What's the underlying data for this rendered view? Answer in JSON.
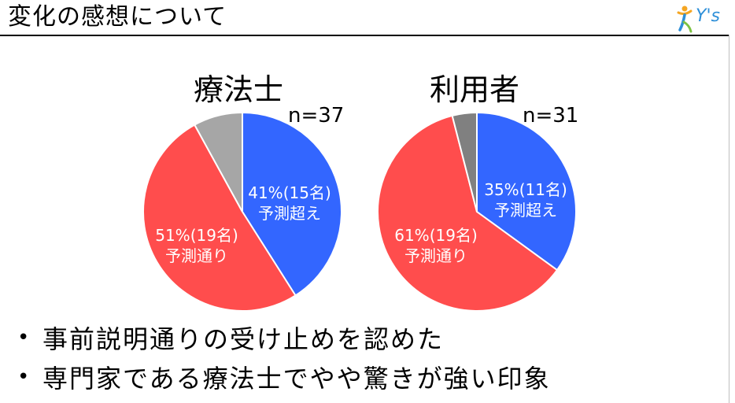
{
  "header": {
    "title": "変化の感想について",
    "logo_text": "Y's"
  },
  "chart_data": [
    {
      "type": "pie",
      "title": "療法士",
      "n_label": "n=37",
      "slices": [
        {
          "value": 41,
          "label": "41%(15名)",
          "sublabel": "予測超え",
          "color": "#3366ff"
        },
        {
          "value": 51,
          "label": "51%(19名)",
          "sublabel": "予測通り",
          "color": "#ff4d4d"
        },
        {
          "value": 8,
          "label": "",
          "sublabel": "",
          "color": "#a6a6a6"
        }
      ]
    },
    {
      "type": "pie",
      "title": "利用者",
      "n_label": "n=31",
      "slices": [
        {
          "value": 35,
          "label": "35%(11名)",
          "sublabel": "予測超え",
          "color": "#3366ff"
        },
        {
          "value": 61,
          "label": "61%(19名)",
          "sublabel": "予測通り",
          "color": "#ff4d4d"
        },
        {
          "value": 4,
          "label": "",
          "sublabel": "",
          "color": "#808080"
        }
      ]
    }
  ],
  "bullets": [
    "事前説明通りの受け止めを認めた",
    "専門家である療法士でやや驚きが強い印象"
  ]
}
